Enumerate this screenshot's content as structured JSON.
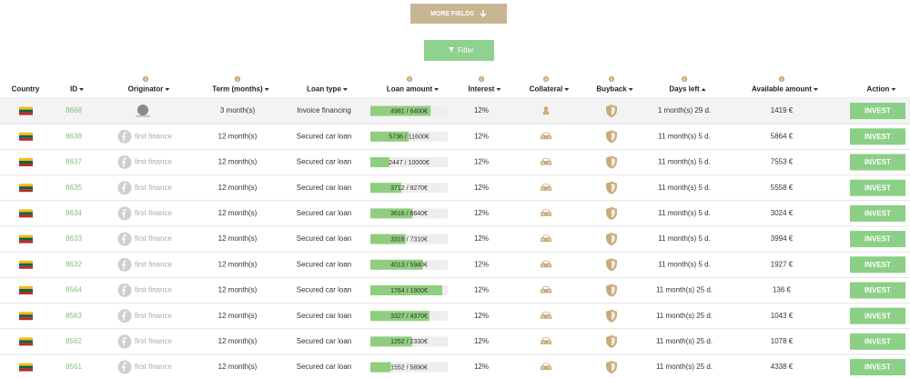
{
  "buttons": {
    "more_fields": "MORE FIELDS",
    "filter": "Filter"
  },
  "table": {
    "headers": [
      {
        "label": "Country",
        "sort": null,
        "info": false
      },
      {
        "label": "ID",
        "sort": "desc",
        "info": false
      },
      {
        "label": "Originator",
        "sort": "desc",
        "info": true
      },
      {
        "label": "Term (months)",
        "sort": "desc",
        "info": true
      },
      {
        "label": "Loan type",
        "sort": "desc",
        "info": false
      },
      {
        "label": "Loan amount",
        "sort": "desc",
        "info": true
      },
      {
        "label": "Interest",
        "sort": "desc",
        "info": true
      },
      {
        "label": "Collateral",
        "sort": "desc",
        "info": true
      },
      {
        "label": "Buyback",
        "sort": "desc",
        "info": true
      },
      {
        "label": "Days left",
        "sort": "asc",
        "info": true
      },
      {
        "label": "Available amount",
        "sort": "desc",
        "info": true
      },
      {
        "label": "Action",
        "sort": "desc",
        "info": false
      }
    ],
    "rows": [
      {
        "id": "8668",
        "term": "3 month(s)",
        "loan_type": "Invoice financing",
        "loan_amount": {
          "label": "4981 / 6400€",
          "funded": 4981,
          "total": 6400
        },
        "interest": "12%",
        "collateral": "person",
        "days_left": "1 month(s) 29 d.",
        "available": "1419 €",
        "action": "INVEST"
      },
      {
        "id": "8638",
        "originator": "first finance",
        "term": "12 month(s)",
        "loan_type": "Secured car loan",
        "loan_amount": {
          "label": "5736 / 11600€",
          "funded": 5736,
          "total": 11600
        },
        "interest": "12%",
        "collateral": "car",
        "days_left": "11 month(s) 5 d.",
        "available": "5864 €",
        "action": "INVEST"
      },
      {
        "id": "8637",
        "originator": "first finance",
        "term": "12 month(s)",
        "loan_type": "Secured car loan",
        "loan_amount": {
          "label": "2447 / 10000€",
          "funded": 2447,
          "total": 10000
        },
        "interest": "12%",
        "collateral": "car",
        "days_left": "11 month(s) 5 d.",
        "available": "7553 €",
        "action": "INVEST"
      },
      {
        "id": "8635",
        "originator": "first finance",
        "term": "12 month(s)",
        "loan_type": "Secured car loan",
        "loan_amount": {
          "label": "3712 / 9270€",
          "funded": 3712,
          "total": 9270
        },
        "interest": "12%",
        "collateral": "car",
        "days_left": "11 month(s) 5 d.",
        "available": "5558 €",
        "action": "INVEST"
      },
      {
        "id": "8634",
        "originator": "first finance",
        "term": "12 month(s)",
        "loan_type": "Secured car loan",
        "loan_amount": {
          "label": "3616 / 6640€",
          "funded": 3616,
          "total": 6640
        },
        "interest": "12%",
        "collateral": "car",
        "days_left": "11 month(s) 5 d.",
        "available": "3024 €",
        "action": "INVEST"
      },
      {
        "id": "8633",
        "originator": "first finance",
        "term": "12 month(s)",
        "loan_type": "Secured car loan",
        "loan_amount": {
          "label": "3316 / 7310€",
          "funded": 3316,
          "total": 7310
        },
        "interest": "12%",
        "collateral": "car",
        "days_left": "11 month(s) 5 d.",
        "available": "3994 €",
        "action": "INVEST"
      },
      {
        "id": "8632",
        "originator": "first finance",
        "term": "12 month(s)",
        "loan_type": "Secured car loan",
        "loan_amount": {
          "label": "4013 / 5940€",
          "funded": 4013,
          "total": 5940
        },
        "interest": "12%",
        "collateral": "car",
        "days_left": "11 month(s) 5 d.",
        "available": "1927 €",
        "action": "INVEST"
      },
      {
        "id": "8564",
        "originator": "first finance",
        "term": "12 month(s)",
        "loan_type": "Secured car loan",
        "loan_amount": {
          "label": "1764 / 1900€",
          "funded": 1764,
          "total": 1900
        },
        "interest": "12%",
        "collateral": "car",
        "days_left": "11 month(s) 25 d.",
        "available": "136 €",
        "action": "INVEST"
      },
      {
        "id": "8563",
        "originator": "first finance",
        "term": "12 month(s)",
        "loan_type": "Secured car loan",
        "loan_amount": {
          "label": "3327 / 4370€",
          "funded": 3327,
          "total": 4370
        },
        "interest": "12%",
        "collateral": "car",
        "days_left": "11 month(s) 25 d.",
        "available": "1043 €",
        "action": "INVEST"
      },
      {
        "id": "8562",
        "originator": "first finance",
        "term": "12 month(s)",
        "loan_type": "Secured car loan",
        "loan_amount": {
          "label": "1252 / 2330€",
          "funded": 1252,
          "total": 2330
        },
        "interest": "12%",
        "collateral": "car",
        "days_left": "11 month(s) 25 d.",
        "available": "1078 €",
        "action": "INVEST"
      },
      {
        "id": "8561",
        "originator": "first finance",
        "term": "12 month(s)",
        "loan_type": "Secured car loan",
        "loan_amount": {
          "label": "1552 / 5890€",
          "funded": 1552,
          "total": 5890
        },
        "interest": "12%",
        "collateral": "car",
        "days_left": "11 month(s) 25 d.",
        "available": "4338 €",
        "action": "INVEST"
      }
    ]
  }
}
